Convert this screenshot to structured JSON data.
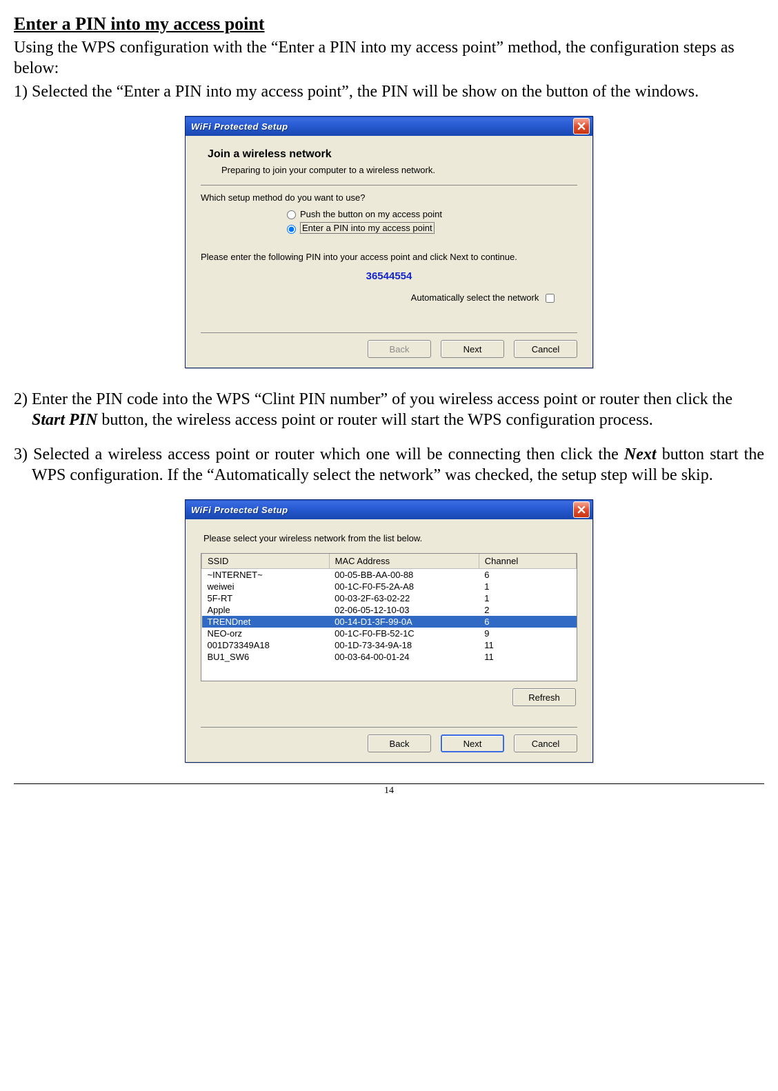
{
  "section_title": "Enter a PIN into my access point",
  "intro": "Using the WPS configuration with the “Enter a PIN into my access point” method, the configuration steps as below:",
  "step1": "1) Selected the “Enter a PIN into my access point”, the PIN will be show on the button of the windows.",
  "step2_part1": "2) Enter the PIN code into the WPS “Clint PIN number” of you wireless access point or router then click the  ",
  "step2_startpin": "Start PIN",
  "step2_part2": " button, the wireless access point or router will start the WPS configuration process.",
  "step3_part1": "3) Selected a wireless access point or router which one will be connecting then click the ",
  "step3_next": "Next",
  "step3_part2": " button start the WPS configuration. If the “Automatically select the network” was checked, the setup step will be skip.",
  "page_number": "14",
  "win1": {
    "title": "WiFi Protected Setup",
    "heading": "Join a wireless network",
    "subheading": "Preparing to join your computer to a wireless network.",
    "question": "Which setup method do you want to use?",
    "radio1": "Push the button on my access point",
    "radio2": "Enter a PIN into my access point",
    "enter_pin_text": "Please enter the following PIN into your access point and click Next to continue.",
    "pin": "36544554",
    "auto_label": "Automatically select the network",
    "btn_back": "Back",
    "btn_next": "Next",
    "btn_cancel": "Cancel"
  },
  "win2": {
    "title": "WiFi Protected Setup",
    "prompt": "Please select your wireless network from the list below.",
    "col_ssid": "SSID",
    "col_mac": "MAC Address",
    "col_channel": "Channel",
    "col_ssid_width": "34%",
    "col_mac_width": "40%",
    "col_channel_width": "26%",
    "selected_index": 4,
    "rows": [
      {
        "ssid": "~INTERNET~",
        "mac": "00-05-BB-AA-00-88",
        "ch": "6"
      },
      {
        "ssid": "weiwei",
        "mac": "00-1C-F0-F5-2A-A8",
        "ch": "1"
      },
      {
        "ssid": "5F-RT",
        "mac": "00-03-2F-63-02-22",
        "ch": "1"
      },
      {
        "ssid": "Apple",
        "mac": "02-06-05-12-10-03",
        "ch": "2"
      },
      {
        "ssid": "TRENDnet",
        "mac": "00-14-D1-3F-99-0A",
        "ch": "6"
      },
      {
        "ssid": "NEO-orz",
        "mac": "00-1C-F0-FB-52-1C",
        "ch": "9"
      },
      {
        "ssid": "001D73349A18",
        "mac": "00-1D-73-34-9A-18",
        "ch": "11"
      },
      {
        "ssid": "BU1_SW6",
        "mac": "00-03-64-00-01-24",
        "ch": "11"
      }
    ],
    "btn_refresh": "Refresh",
    "btn_back": "Back",
    "btn_next": "Next",
    "btn_cancel": "Cancel"
  }
}
